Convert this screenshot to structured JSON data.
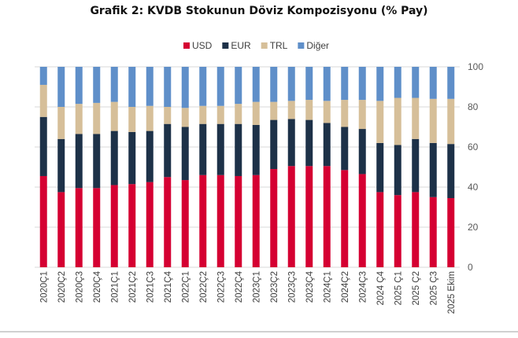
{
  "chart_data": {
    "type": "bar",
    "stacked": true,
    "title": "Grafik 2: KVDB Stokunun Döviz Kompozisyonu (% Pay)",
    "xlabel": "",
    "ylabel": "",
    "ylim": [
      0,
      100
    ],
    "yticks": [
      0,
      20,
      40,
      60,
      80,
      100
    ],
    "y_axis_side": "right",
    "grid": true,
    "legend_position": "top",
    "categories": [
      "2020Ç1",
      "2020Ç2",
      "2020Ç3",
      "2020Ç4",
      "2021Ç1",
      "2021Ç2",
      "2021Ç3",
      "2021Ç4",
      "2022Ç1",
      "2022Ç2",
      "2022Ç3",
      "2022Ç4",
      "2023Ç1",
      "2023Ç2",
      "2023Ç3",
      "2023Ç4",
      "2024Ç1",
      "2024Ç2",
      "2024Ç3",
      "2024 Ç4",
      "2025 Ç1",
      "2025 Ç2",
      "2025 Ç3",
      "2025 Ekim"
    ],
    "series": [
      {
        "name": "USD",
        "color": "#d50032",
        "values": [
          45.5,
          37.5,
          39.5,
          39.5,
          41,
          41.5,
          42.5,
          45,
          43.5,
          46,
          46,
          45.5,
          46,
          49,
          50.5,
          50.5,
          50.5,
          48.5,
          46.5,
          37.5,
          36,
          37.5,
          35,
          34.5
        ]
      },
      {
        "name": "EUR",
        "color": "#1d3148",
        "values": [
          29.5,
          26.5,
          27,
          27,
          27,
          26,
          25.5,
          26.5,
          26.5,
          25.5,
          25.5,
          26,
          25,
          24.5,
          23.5,
          23,
          21.5,
          21.5,
          22.5,
          24.5,
          25,
          26.5,
          27,
          27
        ]
      },
      {
        "name": "TRL",
        "color": "#d6bf99",
        "values": [
          16,
          16,
          15,
          15.5,
          14.5,
          12.5,
          12.5,
          8.5,
          9.5,
          9,
          9,
          10,
          11.5,
          9,
          9,
          10,
          11,
          13.5,
          14.5,
          21,
          23.5,
          20.5,
          22,
          22.5
        ]
      },
      {
        "name": "Diğer",
        "color": "#5f8fc9",
        "values": [
          9,
          20,
          18.5,
          18,
          17.5,
          20,
          19.5,
          20,
          20.5,
          19.5,
          19.5,
          18.5,
          17.5,
          17.5,
          17,
          16.5,
          17,
          16.5,
          16.5,
          17,
          15.5,
          15.5,
          16,
          16
        ]
      }
    ]
  }
}
